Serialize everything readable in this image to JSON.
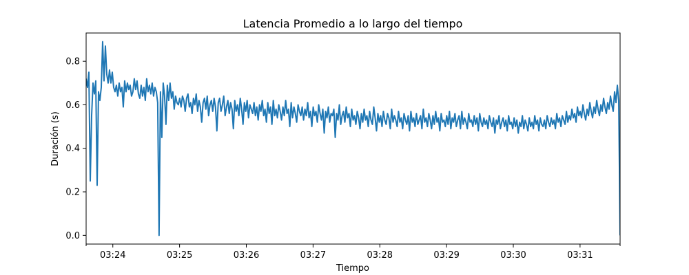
{
  "chart_data": {
    "type": "line",
    "title": "Latencia Promedio a lo largo del tiempo",
    "xlabel": "Tiempo",
    "ylabel": "Duración (s)",
    "x_start": "03:23:36",
    "x_end": "03:31:36",
    "xlim": [
      "03:23:36",
      "03:31:36"
    ],
    "ylim": [
      -0.04,
      0.93
    ],
    "x_ticks": [
      "03:24",
      "03:25",
      "03:26",
      "03:27",
      "03:28",
      "03:29",
      "03:30",
      "03:31"
    ],
    "y_ticks": [
      "0.0",
      "0.2",
      "0.4",
      "0.6",
      "0.8"
    ],
    "grid": false,
    "color": "#1f77b4",
    "series": [
      {
        "values": [
          0.72,
          0.68,
          0.75,
          0.25,
          0.55,
          0.7,
          0.65,
          0.71,
          0.23,
          0.66,
          0.62,
          0.68,
          0.89,
          0.71,
          0.87,
          0.74,
          0.7,
          0.76,
          0.7,
          0.75,
          0.68,
          0.66,
          0.69,
          0.64,
          0.7,
          0.66,
          0.68,
          0.59,
          0.71,
          0.66,
          0.7,
          0.67,
          0.69,
          0.64,
          0.66,
          0.72,
          0.67,
          0.71,
          0.65,
          0.63,
          0.69,
          0.64,
          0.68,
          0.62,
          0.72,
          0.66,
          0.69,
          0.65,
          0.7,
          0.64,
          0.68,
          0.66,
          0.61,
          0.0,
          0.66,
          0.45,
          0.7,
          0.64,
          0.51,
          0.69,
          0.62,
          0.7,
          0.63,
          0.66,
          0.58,
          0.64,
          0.61,
          0.6,
          0.63,
          0.59,
          0.64,
          0.62,
          0.57,
          0.63,
          0.65,
          0.59,
          0.61,
          0.56,
          0.63,
          0.6,
          0.65,
          0.57,
          0.62,
          0.59,
          0.52,
          0.61,
          0.63,
          0.58,
          0.64,
          0.55,
          0.6,
          0.62,
          0.57,
          0.63,
          0.59,
          0.48,
          0.61,
          0.63,
          0.57,
          0.6,
          0.64,
          0.55,
          0.59,
          0.62,
          0.56,
          0.61,
          0.58,
          0.49,
          0.62,
          0.57,
          0.6,
          0.55,
          0.63,
          0.58,
          0.51,
          0.61,
          0.57,
          0.62,
          0.54,
          0.6,
          0.58,
          0.56,
          0.61,
          0.55,
          0.59,
          0.53,
          0.6,
          0.57,
          0.62,
          0.55,
          0.58,
          0.52,
          0.61,
          0.56,
          0.59,
          0.51,
          0.62,
          0.55,
          0.58,
          0.54,
          0.6,
          0.57,
          0.53,
          0.59,
          0.55,
          0.62,
          0.56,
          0.58,
          0.5,
          0.61,
          0.54,
          0.59,
          0.56,
          0.52,
          0.6,
          0.57,
          0.55,
          0.59,
          0.53,
          0.58,
          0.55,
          0.61,
          0.54,
          0.57,
          0.5,
          0.59,
          0.55,
          0.57,
          0.52,
          0.6,
          0.56,
          0.53,
          0.58,
          0.47,
          0.57,
          0.54,
          0.59,
          0.52,
          0.56,
          0.55,
          0.58,
          0.45,
          0.56,
          0.53,
          0.6,
          0.51,
          0.55,
          0.57,
          0.52,
          0.59,
          0.54,
          0.56,
          0.5,
          0.58,
          0.53,
          0.55,
          0.51,
          0.57,
          0.54,
          0.49,
          0.56,
          0.52,
          0.58,
          0.53,
          0.55,
          0.5,
          0.57,
          0.53,
          0.51,
          0.59,
          0.54,
          0.48,
          0.56,
          0.52,
          0.55,
          0.5,
          0.57,
          0.53,
          0.51,
          0.56,
          0.54,
          0.49,
          0.58,
          0.52,
          0.55,
          0.53,
          0.5,
          0.57,
          0.52,
          0.54,
          0.49,
          0.56,
          0.53,
          0.51,
          0.55,
          0.48,
          0.57,
          0.52,
          0.54,
          0.5,
          0.56,
          0.51,
          0.53,
          0.55,
          0.49,
          0.58,
          0.52,
          0.54,
          0.5,
          0.56,
          0.53,
          0.49,
          0.55,
          0.51,
          0.57,
          0.52,
          0.54,
          0.48,
          0.56,
          0.52,
          0.53,
          0.5,
          0.55,
          0.51,
          0.57,
          0.49,
          0.54,
          0.52,
          0.56,
          0.5,
          0.53,
          0.55,
          0.49,
          0.57,
          0.51,
          0.54,
          0.52,
          0.49,
          0.56,
          0.52,
          0.53,
          0.5,
          0.55,
          0.51,
          0.54,
          0.48,
          0.56,
          0.52,
          0.5,
          0.54,
          0.51,
          0.53,
          0.49,
          0.55,
          0.52,
          0.5,
          0.54,
          0.47,
          0.53,
          0.51,
          0.55,
          0.49,
          0.52,
          0.54,
          0.5,
          0.53,
          0.48,
          0.55,
          0.51,
          0.52,
          0.49,
          0.54,
          0.5,
          0.53,
          0.47,
          0.52,
          0.5,
          0.55,
          0.49,
          0.53,
          0.51,
          0.48,
          0.54,
          0.5,
          0.52,
          0.49,
          0.55,
          0.51,
          0.53,
          0.48,
          0.54,
          0.51,
          0.5,
          0.53,
          0.49,
          0.55,
          0.52,
          0.5,
          0.54,
          0.51,
          0.53,
          0.49,
          0.56,
          0.52,
          0.54,
          0.5,
          0.55,
          0.53,
          0.51,
          0.57,
          0.52,
          0.55,
          0.53,
          0.58,
          0.54,
          0.56,
          0.52,
          0.59,
          0.55,
          0.57,
          0.54,
          0.6,
          0.56,
          0.53,
          0.58,
          0.55,
          0.61,
          0.57,
          0.54,
          0.59,
          0.56,
          0.62,
          0.58,
          0.55,
          0.6,
          0.57,
          0.63,
          0.59,
          0.56,
          0.61,
          0.58,
          0.64,
          0.6,
          0.57,
          0.66,
          0.61,
          0.69,
          0.62,
          0.0
        ]
      }
    ]
  }
}
